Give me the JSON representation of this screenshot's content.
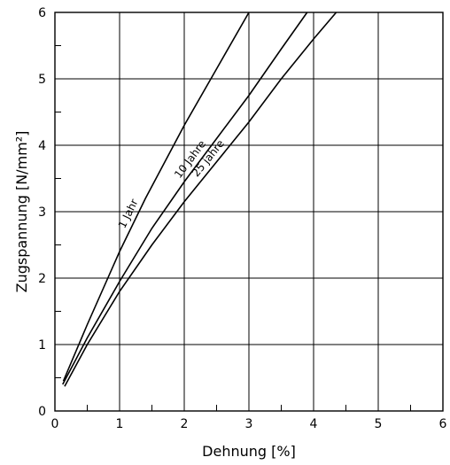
{
  "chart_data": {
    "type": "line",
    "title": "",
    "xlabel": "Dehnung [%]",
    "ylabel": "Zugspannung  [N/mm²]",
    "xlim": [
      0,
      6
    ],
    "ylim": [
      0,
      6
    ],
    "x_ticks": [
      "0",
      "1",
      "2",
      "3",
      "4",
      "5",
      "6"
    ],
    "y_ticks": [
      "0",
      "1",
      "2",
      "3",
      "4",
      "5",
      "6"
    ],
    "grid": true,
    "series": [
      {
        "name": "1 Jahr",
        "x": [
          0.13,
          0.5,
          1.0,
          1.4,
          2.0,
          2.5,
          3.0
        ],
        "y": [
          0.45,
          1.3,
          2.4,
          3.2,
          4.3,
          5.15,
          6.0
        ]
      },
      {
        "name": "10 Jahre",
        "x": [
          0.12,
          0.5,
          1.0,
          1.5,
          2.0,
          2.5,
          3.0,
          3.5,
          3.9
        ],
        "y": [
          0.4,
          1.1,
          1.95,
          2.75,
          3.45,
          4.1,
          4.75,
          5.45,
          6.0
        ]
      },
      {
        "name": "25 jahre",
        "x": [
          0.15,
          0.5,
          1.0,
          1.5,
          2.0,
          2.5,
          3.0,
          3.5,
          4.0,
          4.35
        ],
        "y": [
          0.37,
          1.0,
          1.8,
          2.5,
          3.15,
          3.75,
          4.35,
          5.0,
          5.6,
          6.0
        ]
      }
    ]
  }
}
